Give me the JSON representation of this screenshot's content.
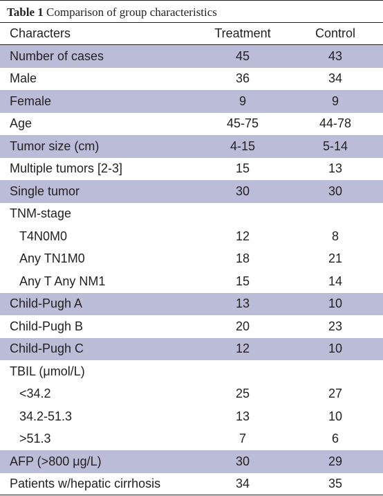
{
  "caption": {
    "label": "Table 1",
    "text": "Comparison of group characteristics"
  },
  "columns": [
    "Characters",
    "Treatment",
    "Control"
  ],
  "rows": [
    {
      "label": "Number of cases",
      "treatment": "45",
      "control": "43",
      "shaded": true,
      "indent": false
    },
    {
      "label": "Male",
      "treatment": "36",
      "control": "34",
      "shaded": false,
      "indent": false
    },
    {
      "label": "Female",
      "treatment": "9",
      "control": "9",
      "shaded": true,
      "indent": false
    },
    {
      "label": "Age",
      "treatment": "45-75",
      "control": "44-78",
      "shaded": false,
      "indent": false
    },
    {
      "label": "Tumor size (cm)",
      "treatment": "4-15",
      "control": "5-14",
      "shaded": true,
      "indent": false
    },
    {
      "label": "Multiple tumors [2-3]",
      "treatment": "15",
      "control": "13",
      "shaded": false,
      "indent": false
    },
    {
      "label": "Single tumor",
      "treatment": "30",
      "control": "30",
      "shaded": true,
      "indent": false
    },
    {
      "label": "TNM-stage",
      "treatment": "",
      "control": "",
      "shaded": false,
      "indent": false
    },
    {
      "label": "T4N0M0",
      "treatment": "12",
      "control": "8",
      "shaded": false,
      "indent": true
    },
    {
      "label": "Any TN1M0",
      "treatment": "18",
      "control": "21",
      "shaded": false,
      "indent": true
    },
    {
      "label": "Any T Any NM1",
      "treatment": "15",
      "control": "14",
      "shaded": false,
      "indent": true
    },
    {
      "label": "Child-Pugh A",
      "treatment": "13",
      "control": "10",
      "shaded": true,
      "indent": false
    },
    {
      "label": "Child-Pugh B",
      "treatment": "20",
      "control": "23",
      "shaded": false,
      "indent": false
    },
    {
      "label": "Child-Pugh C",
      "treatment": "12",
      "control": "10",
      "shaded": true,
      "indent": false
    },
    {
      "label": "TBIL (μmol/L)",
      "treatment": "",
      "control": "",
      "shaded": false,
      "indent": false
    },
    {
      "label": "<34.2",
      "treatment": "25",
      "control": "27",
      "shaded": false,
      "indent": true
    },
    {
      "label": "34.2-51.3",
      "treatment": "13",
      "control": "10",
      "shaded": false,
      "indent": true
    },
    {
      "label": ">51.3",
      "treatment": "7",
      "control": "6",
      "shaded": false,
      "indent": true
    },
    {
      "label": "AFP (>800 μg/L)",
      "treatment": "30",
      "control": "29",
      "shaded": true,
      "indent": false
    },
    {
      "label": "Patients w/hepatic cirrhosis",
      "treatment": "34",
      "control": "35",
      "shaded": false,
      "indent": false
    }
  ]
}
